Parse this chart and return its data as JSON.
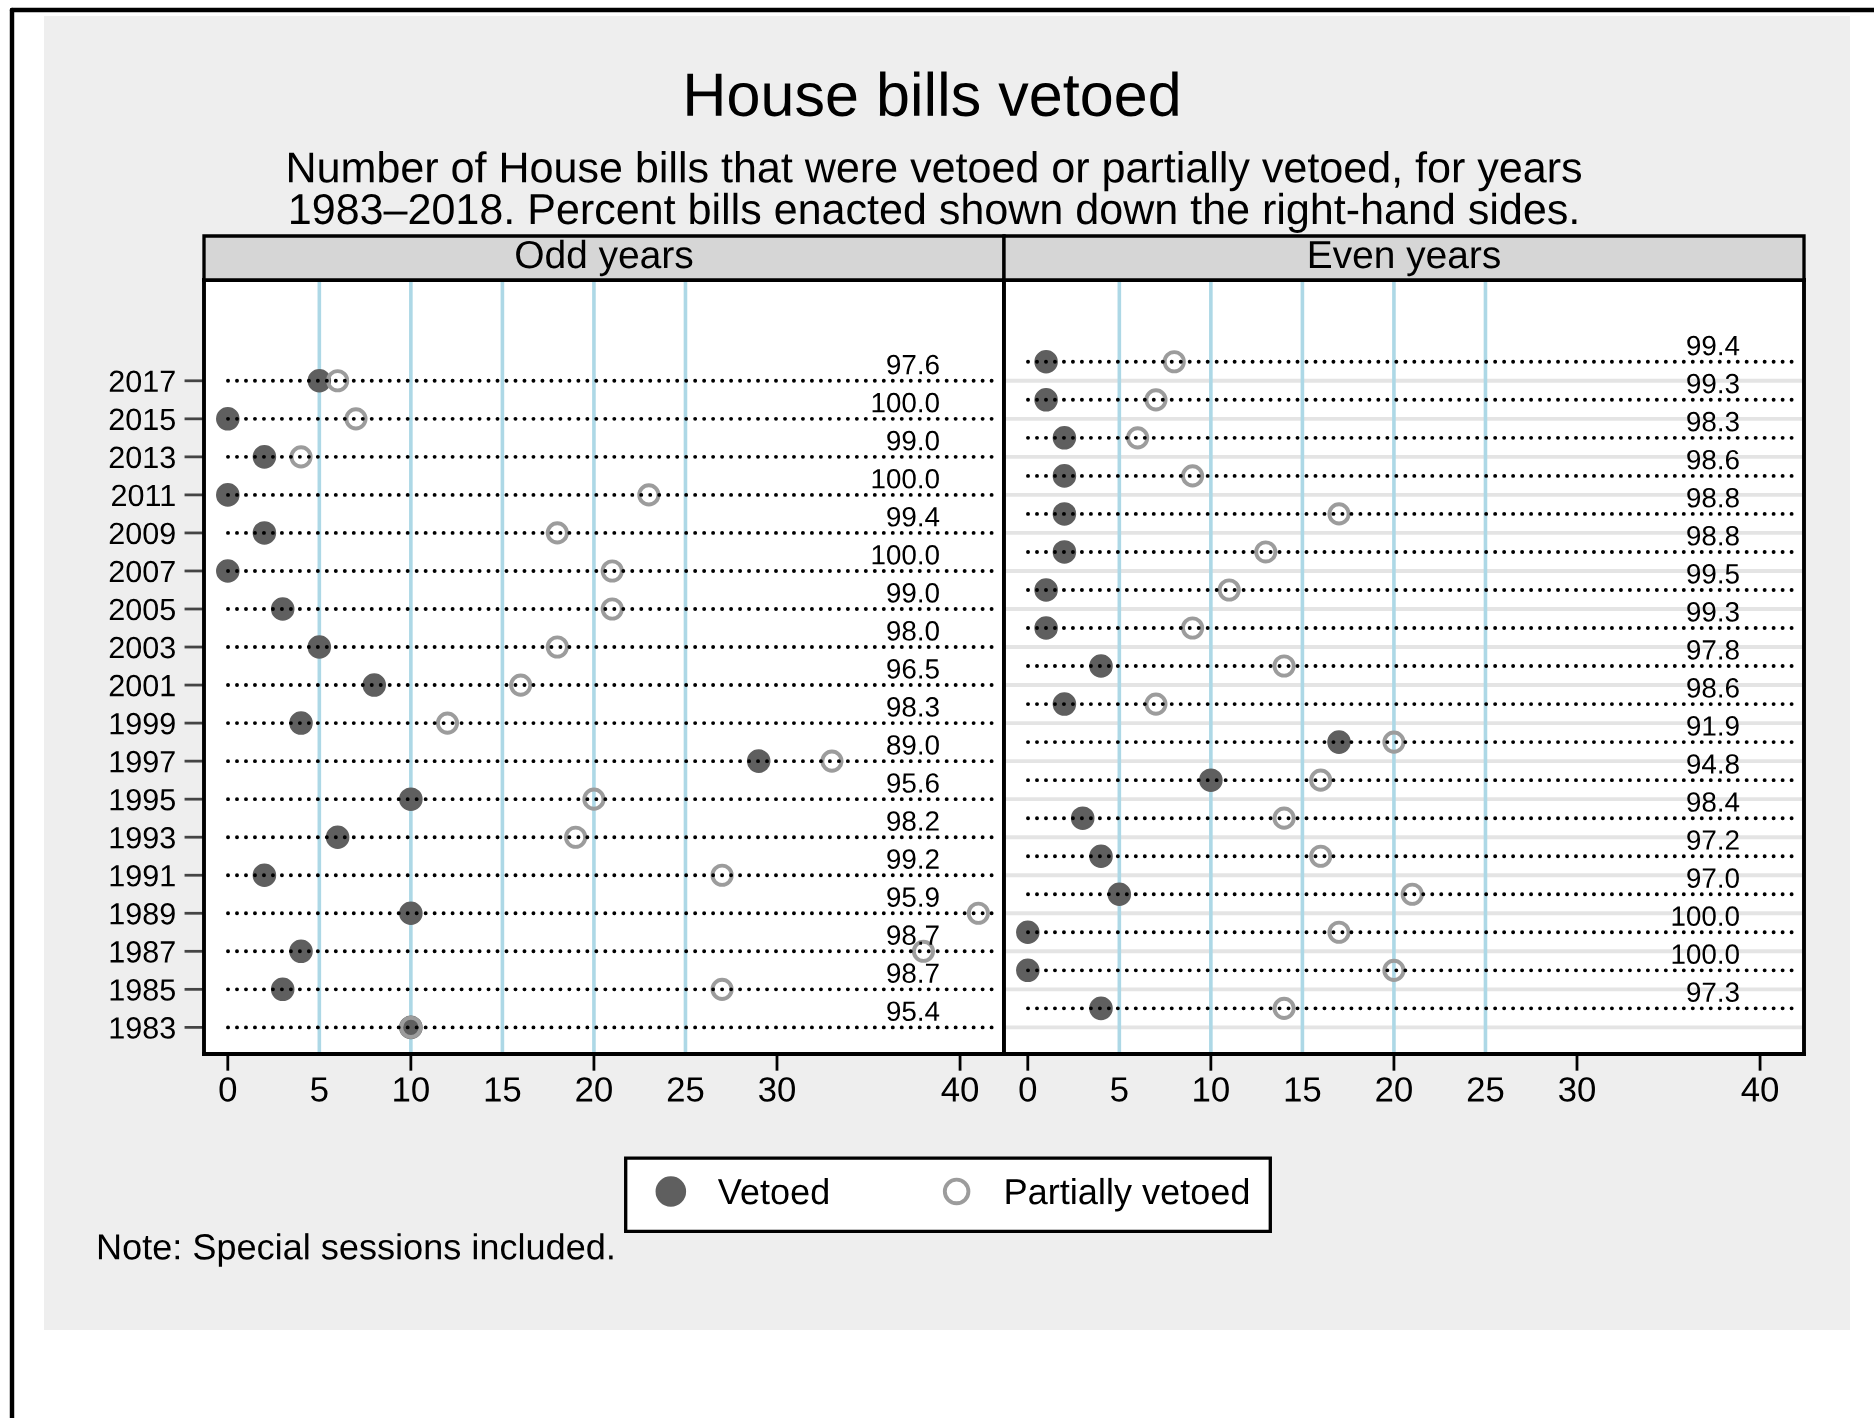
{
  "chart_data": [
    {
      "type": "other",
      "title": "House bills vetoed",
      "subtitle": "Number of House bills that were vetoed or partially vetoed, for years\n1983–2018. Percent bills enacted shown down the right-hand sides.",
      "annotations": [
        "Note: Special sessions included."
      ]
    },
    {
      "type": "scatter",
      "title": "Odd years",
      "marker": "circle",
      "legend": "bottom",
      "series": [
        {
          "name": "Vetoed",
          "color": "#5f5f5f",
          "x": [
            5,
            0,
            2,
            0,
            2,
            0,
            3,
            5,
            8,
            4,
            29,
            10,
            6,
            2,
            10,
            4,
            3,
            10
          ],
          "values": [
            2017,
            2015,
            2013,
            2011,
            2009,
            2007,
            2005,
            2003,
            2001,
            1999,
            1997,
            1995,
            1993,
            1991,
            1989,
            1987,
            1985,
            1983
          ]
        },
        {
          "name": "Partially vetoed",
          "color": "#9c9c9c",
          "x": [
            6,
            7,
            4,
            23,
            18,
            21,
            21,
            18,
            16,
            12,
            33,
            20,
            19,
            27,
            41,
            38,
            27,
            10
          ],
          "values": [
            2017,
            2015,
            2013,
            2011,
            2009,
            2007,
            2005,
            2003,
            2001,
            1999,
            1997,
            1995,
            1993,
            1991,
            1989,
            1987,
            1985,
            1983
          ]
        }
      ],
      "xlim": [
        -1.3,
        42.4
      ],
      "xticks": [
        0,
        5,
        10,
        15,
        20,
        25,
        30,
        40
      ],
      "ylim": [
        1981.6,
        2022.3
      ],
      "yticks": [
        2017,
        2015,
        2013,
        2011,
        2009,
        2007,
        2005,
        2003,
        2001,
        1999,
        1997,
        1995,
        1993,
        1991,
        1989,
        1987,
        1985,
        1983
      ],
      "ref_lines": [
        {
          "axis": "x",
          "value": 5,
          "color": "#add8e6"
        },
        {
          "axis": "x",
          "value": 10,
          "color": "#add8e6"
        },
        {
          "axis": "x",
          "value": 15,
          "color": "#add8e6"
        },
        {
          "axis": "x",
          "value": 20,
          "color": "#add8e6"
        },
        {
          "axis": "x",
          "value": 25,
          "color": "#add8e6"
        },
        {
          "axis": "y",
          "value": 2017,
          "line_style": "dotted",
          "color": "#000000"
        },
        {
          "axis": "y",
          "value": 2015,
          "line_style": "dotted",
          "color": "#000000"
        },
        {
          "axis": "y",
          "value": 2013,
          "line_style": "dotted",
          "color": "#000000"
        },
        {
          "axis": "y",
          "value": 2011,
          "line_style": "dotted",
          "color": "#000000"
        },
        {
          "axis": "y",
          "value": 2009,
          "line_style": "dotted",
          "color": "#000000"
        },
        {
          "axis": "y",
          "value": 2007,
          "line_style": "dotted",
          "color": "#000000"
        },
        {
          "axis": "y",
          "value": 2005,
          "line_style": "dotted",
          "color": "#000000"
        },
        {
          "axis": "y",
          "value": 2003,
          "line_style": "dotted",
          "color": "#000000"
        },
        {
          "axis": "y",
          "value": 2001,
          "line_style": "dotted",
          "color": "#000000"
        },
        {
          "axis": "y",
          "value": 1999,
          "line_style": "dotted",
          "color": "#000000"
        },
        {
          "axis": "y",
          "value": 1997,
          "line_style": "dotted",
          "color": "#000000"
        },
        {
          "axis": "y",
          "value": 1995,
          "line_style": "dotted",
          "color": "#000000"
        },
        {
          "axis": "y",
          "value": 1993,
          "line_style": "dotted",
          "color": "#000000"
        },
        {
          "axis": "y",
          "value": 1991,
          "line_style": "dotted",
          "color": "#000000"
        },
        {
          "axis": "y",
          "value": 1989,
          "line_style": "dotted",
          "color": "#000000"
        },
        {
          "axis": "y",
          "value": 1987,
          "line_style": "dotted",
          "color": "#000000"
        },
        {
          "axis": "y",
          "value": 1985,
          "line_style": "dotted",
          "color": "#000000"
        },
        {
          "axis": "y",
          "value": 1983,
          "line_style": "dotted",
          "color": "#000000"
        }
      ],
      "annotations": [
        {
          "text": "97.6",
          "y": 2017
        },
        {
          "text": "100.0",
          "y": 2015
        },
        {
          "text": "99.0",
          "y": 2013
        },
        {
          "text": "100.0",
          "y": 2011
        },
        {
          "text": "99.4",
          "y": 2009
        },
        {
          "text": "100.0",
          "y": 2007
        },
        {
          "text": "99.0",
          "y": 2005
        },
        {
          "text": "98.0",
          "y": 2003
        },
        {
          "text": "96.5",
          "y": 2001
        },
        {
          "text": "98.3",
          "y": 1999
        },
        {
          "text": "89.0",
          "y": 1997
        },
        {
          "text": "95.6",
          "y": 1995
        },
        {
          "text": "98.2",
          "y": 1993
        },
        {
          "text": "99.2",
          "y": 1991
        },
        {
          "text": "95.9",
          "y": 1989
        },
        {
          "text": "98.7",
          "y": 1987
        },
        {
          "text": "98.7",
          "y": 1985
        },
        {
          "text": "95.4",
          "y": 1983
        }
      ]
    },
    {
      "type": "scatter",
      "title": "Even years",
      "marker": "circle",
      "grid": "y",
      "tick_labels": "x",
      "series": [
        {
          "name": "Vetoed",
          "color": "#5f5f5f",
          "x": [
            1,
            1,
            2,
            2,
            2,
            2,
            1,
            1,
            4,
            2,
            17,
            10,
            3,
            4,
            5,
            0,
            0,
            4
          ],
          "values": [
            2018,
            2016,
            2014,
            2012,
            2010,
            2008,
            2006,
            2004,
            2002,
            2000,
            1998,
            1996,
            1994,
            1992,
            1990,
            1988,
            1986,
            1984
          ]
        },
        {
          "name": "Partially vetoed",
          "color": "#9c9c9c",
          "x": [
            8,
            7,
            6,
            9,
            17,
            13,
            11,
            9,
            14,
            7,
            20,
            16,
            14,
            16,
            21,
            17,
            20,
            14
          ],
          "values": [
            2018,
            2016,
            2014,
            2012,
            2010,
            2008,
            2006,
            2004,
            2002,
            2000,
            1998,
            1996,
            1994,
            1992,
            1990,
            1988,
            1986,
            1984
          ]
        }
      ],
      "xlim": [
        -1.3,
        42.4
      ],
      "xticks": [
        0,
        5,
        10,
        15,
        20,
        25,
        30,
        40
      ],
      "ylim": [
        1981.6,
        2022.3
      ],
      "yticks": [
        2017,
        2015,
        2013,
        2011,
        2009,
        2007,
        2005,
        2003,
        2001,
        1999,
        1997,
        1995,
        1993,
        1991,
        1989,
        1987,
        1985,
        1983
      ],
      "ref_lines": [
        {
          "axis": "x",
          "value": 5,
          "color": "#add8e6"
        },
        {
          "axis": "x",
          "value": 10,
          "color": "#add8e6"
        },
        {
          "axis": "x",
          "value": 15,
          "color": "#add8e6"
        },
        {
          "axis": "x",
          "value": 20,
          "color": "#add8e6"
        },
        {
          "axis": "x",
          "value": 25,
          "color": "#add8e6"
        },
        {
          "axis": "y",
          "value": 2018,
          "line_style": "dotted",
          "color": "#000000"
        },
        {
          "axis": "y",
          "value": 2016,
          "line_style": "dotted",
          "color": "#000000"
        },
        {
          "axis": "y",
          "value": 2014,
          "line_style": "dotted",
          "color": "#000000"
        },
        {
          "axis": "y",
          "value": 2012,
          "line_style": "dotted",
          "color": "#000000"
        },
        {
          "axis": "y",
          "value": 2010,
          "line_style": "dotted",
          "color": "#000000"
        },
        {
          "axis": "y",
          "value": 2008,
          "line_style": "dotted",
          "color": "#000000"
        },
        {
          "axis": "y",
          "value": 2006,
          "line_style": "dotted",
          "color": "#000000"
        },
        {
          "axis": "y",
          "value": 2004,
          "line_style": "dotted",
          "color": "#000000"
        },
        {
          "axis": "y",
          "value": 2002,
          "line_style": "dotted",
          "color": "#000000"
        },
        {
          "axis": "y",
          "value": 2000,
          "line_style": "dotted",
          "color": "#000000"
        },
        {
          "axis": "y",
          "value": 1998,
          "line_style": "dotted",
          "color": "#000000"
        },
        {
          "axis": "y",
          "value": 1996,
          "line_style": "dotted",
          "color": "#000000"
        },
        {
          "axis": "y",
          "value": 1994,
          "line_style": "dotted",
          "color": "#000000"
        },
        {
          "axis": "y",
          "value": 1992,
          "line_style": "dotted",
          "color": "#000000"
        },
        {
          "axis": "y",
          "value": 1990,
          "line_style": "dotted",
          "color": "#000000"
        },
        {
          "axis": "y",
          "value": 1988,
          "line_style": "dotted",
          "color": "#000000"
        },
        {
          "axis": "y",
          "value": 1986,
          "line_style": "dotted",
          "color": "#000000"
        },
        {
          "axis": "y",
          "value": 1984,
          "line_style": "dotted",
          "color": "#000000"
        }
      ],
      "annotations": [
        {
          "text": "99.4",
          "y": 2018
        },
        {
          "text": "99.3",
          "y": 2016
        },
        {
          "text": "98.3",
          "y": 2014
        },
        {
          "text": "98.6",
          "y": 2012
        },
        {
          "text": "98.8",
          "y": 2010
        },
        {
          "text": "98.8",
          "y": 2008
        },
        {
          "text": "99.5",
          "y": 2006
        },
        {
          "text": "99.3",
          "y": 2004
        },
        {
          "text": "97.8",
          "y": 2002
        },
        {
          "text": "98.6",
          "y": 2000
        },
        {
          "text": "91.9",
          "y": 1998
        },
        {
          "text": "94.8",
          "y": 1996
        },
        {
          "text": "98.4",
          "y": 1994
        },
        {
          "text": "97.2",
          "y": 1992
        },
        {
          "text": "97.0",
          "y": 1990
        },
        {
          "text": "100.0",
          "y": 1988
        },
        {
          "text": "100.0",
          "y": 1986
        },
        {
          "text": "97.3",
          "y": 1984
        }
      ]
    }
  ]
}
